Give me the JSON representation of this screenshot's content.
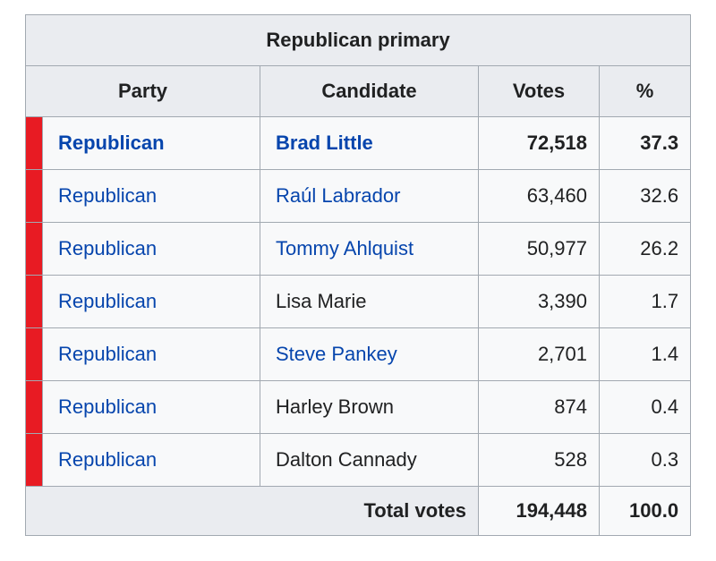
{
  "table": {
    "title": "Republican primary",
    "columns": {
      "party": "Party",
      "candidate": "Candidate",
      "votes": "Votes",
      "percent": "%"
    },
    "rows": [
      {
        "party": "Republican",
        "candidate": "Brad Little",
        "votes": "72,518",
        "percent": "37.3",
        "winner": true,
        "party_linked": true,
        "candidate_linked": true
      },
      {
        "party": "Republican",
        "candidate": "Raúl Labrador",
        "votes": "63,460",
        "percent": "32.6",
        "winner": false,
        "party_linked": true,
        "candidate_linked": true
      },
      {
        "party": "Republican",
        "candidate": "Tommy Ahlquist",
        "votes": "50,977",
        "percent": "26.2",
        "winner": false,
        "party_linked": true,
        "candidate_linked": true
      },
      {
        "party": "Republican",
        "candidate": "Lisa Marie",
        "votes": "3,390",
        "percent": "1.7",
        "winner": false,
        "party_linked": true,
        "candidate_linked": false
      },
      {
        "party": "Republican",
        "candidate": "Steve Pankey",
        "votes": "2,701",
        "percent": "1.4",
        "winner": false,
        "party_linked": true,
        "candidate_linked": true
      },
      {
        "party": "Republican",
        "candidate": "Harley Brown",
        "votes": "874",
        "percent": "0.4",
        "winner": false,
        "party_linked": true,
        "candidate_linked": false
      },
      {
        "party": "Republican",
        "candidate": "Dalton Cannady",
        "votes": "528",
        "percent": "0.3",
        "winner": false,
        "party_linked": true,
        "candidate_linked": false
      }
    ],
    "total": {
      "label": "Total votes",
      "votes": "194,448",
      "percent": "100.0"
    },
    "colors": {
      "party_swatch": "#e81b23",
      "link": "#0645ad",
      "header_bg": "#eaecf0",
      "row_bg": "#f8f9fa",
      "border": "#a2a9b1",
      "text": "#202122"
    }
  }
}
